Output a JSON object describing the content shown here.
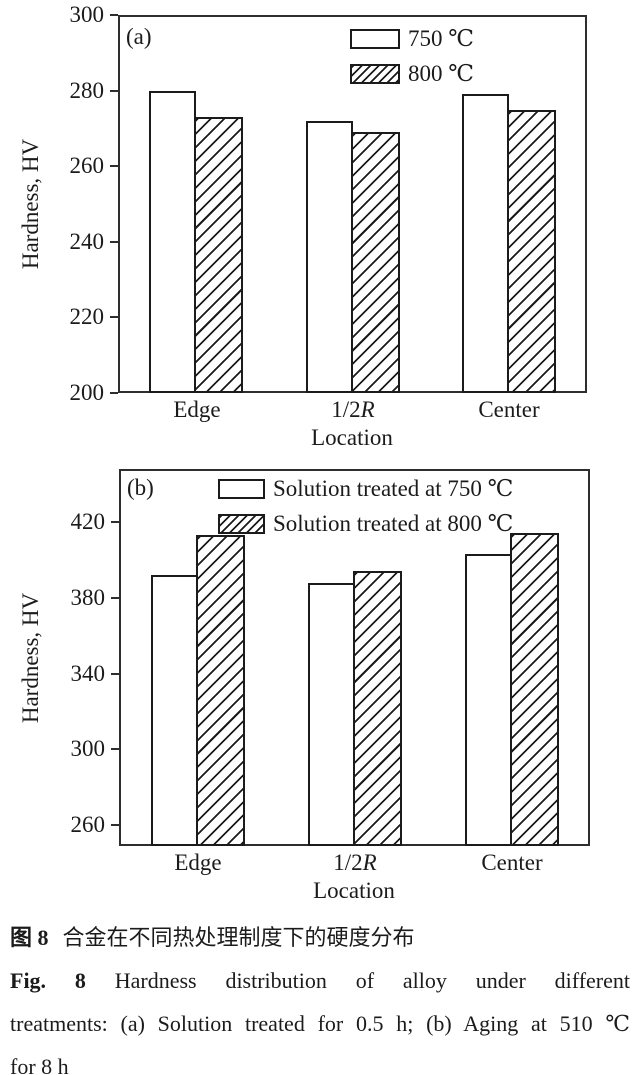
{
  "chart_data": [
    {
      "id": "a",
      "type": "bar",
      "panel_label": "(a)",
      "xlabel": "Location",
      "ylabel": "Hardness, HV",
      "ylim": [
        200,
        300
      ],
      "yticks": [
        200,
        220,
        240,
        260,
        280,
        300
      ],
      "grid": false,
      "legend_position": "top-right-inside",
      "categories": [
        "Edge",
        "1/2R",
        "Center"
      ],
      "categories_display": [
        {
          "text": "Edge",
          "italic": ""
        },
        {
          "text": "1/2",
          "italic": "R"
        },
        {
          "text": "Center",
          "italic": ""
        }
      ],
      "series": [
        {
          "name": "750 ℃",
          "style": "white",
          "values": [
            280,
            272,
            279
          ]
        },
        {
          "name": "800 ℃",
          "style": "hatched",
          "values": [
            273,
            269,
            275
          ]
        }
      ]
    },
    {
      "id": "b",
      "type": "bar",
      "panel_label": "(b)",
      "xlabel": "Location",
      "ylabel": "Hardness, HV",
      "ylim": [
        249,
        448
      ],
      "yticks": [
        260,
        300,
        340,
        380,
        420
      ],
      "grid": false,
      "legend_position": "top-inside",
      "categories": [
        "Edge",
        "1/2R",
        "Center"
      ],
      "categories_display": [
        {
          "text": "Edge",
          "italic": ""
        },
        {
          "text": "1/2",
          "italic": "R"
        },
        {
          "text": "Center",
          "italic": ""
        }
      ],
      "series": [
        {
          "name": "Solution treated at 750 ℃",
          "style": "white",
          "values": [
            392,
            388,
            403
          ]
        },
        {
          "name": "Solution treated at 800 ℃",
          "style": "hatched",
          "values": [
            413,
            394,
            414
          ]
        }
      ]
    }
  ],
  "caption": {
    "zh_label": "图 8",
    "zh_text": "合金在不同热处理制度下的硬度分布",
    "en_label": "Fig. 8",
    "en_line1": "Hardness distribution of alloy under different",
    "en_line2": "treatments: (a) Solution treated for 0.5 h; (b) Aging at 510 ℃",
    "en_line3": "for 8 h"
  }
}
